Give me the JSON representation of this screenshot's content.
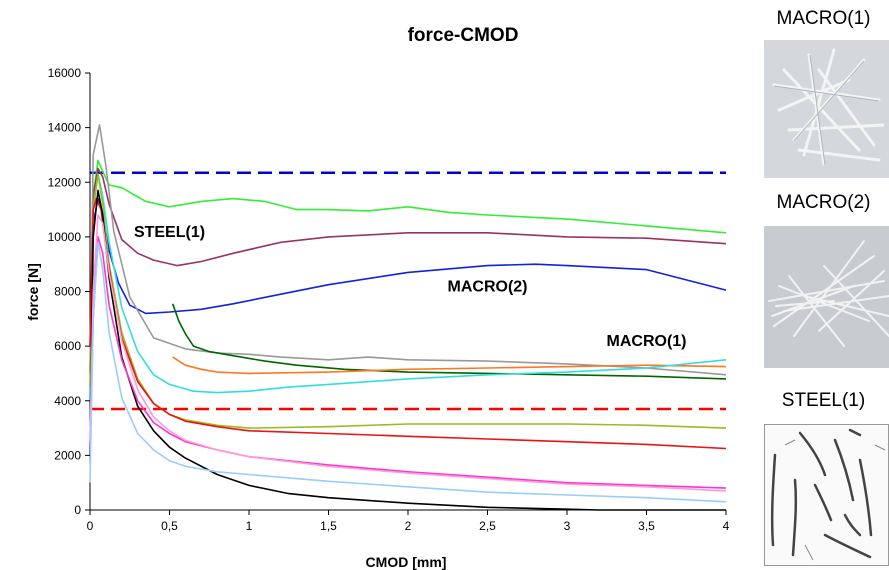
{
  "chart_data": {
    "type": "line",
    "title": "force-CMOD",
    "xlabel": "CMOD [mm]",
    "ylabel": "force [N]",
    "xlim": [
      0,
      4
    ],
    "ylim": [
      0,
      16000
    ],
    "xticks": [
      0,
      0.5,
      1,
      1.5,
      2,
      2.5,
      3,
      3.5,
      4
    ],
    "xtick_labels": [
      "0",
      "0,5",
      "1",
      "1,5",
      "2",
      "2,5",
      "3",
      "3,5",
      "4"
    ],
    "yticks": [
      0,
      2000,
      4000,
      6000,
      8000,
      10000,
      12000,
      14000,
      16000
    ],
    "ytick_labels": [
      "0",
      "2000",
      "4000",
      "6000",
      "8000",
      "10000",
      "12000",
      "14000",
      "16000"
    ],
    "grid": false,
    "legend": "none",
    "annotations": [
      {
        "text": "STEEL(1)",
        "x": 0.5,
        "y": 10000
      },
      {
        "text": "MACRO(2)",
        "x": 2.5,
        "y": 8000
      },
      {
        "text": "MACRO(1)",
        "x": 3.5,
        "y": 6000
      }
    ],
    "reference_lines": [
      {
        "y": 12350,
        "color": "#0000cc",
        "style": "dashed"
      },
      {
        "y": 3700,
        "color": "#ff0000",
        "style": "dashed"
      }
    ],
    "series": [
      {
        "color": "#33ee33",
        "x": [
          0,
          0.02,
          0.05,
          0.08,
          0.12,
          0.2,
          0.35,
          0.5,
          0.7,
          0.9,
          1.1,
          1.3,
          1.5,
          1.75,
          2,
          2.25,
          2.5,
          3,
          3.5,
          4
        ],
        "y": [
          4500,
          11500,
          12800,
          12400,
          11900,
          11800,
          11300,
          11100,
          11300,
          11400,
          11300,
          11000,
          11000,
          10950,
          11100,
          10900,
          10800,
          10650,
          10400,
          10150
        ]
      },
      {
        "color": "#993366",
        "x": [
          0,
          0.02,
          0.05,
          0.08,
          0.12,
          0.2,
          0.3,
          0.4,
          0.55,
          0.7,
          0.9,
          1.2,
          1.5,
          2,
          2.5,
          3,
          3.5,
          4
        ],
        "y": [
          5000,
          11500,
          12500,
          12200,
          11200,
          9900,
          9400,
          9150,
          8950,
          9100,
          9400,
          9800,
          10000,
          10150,
          10150,
          10000,
          9950,
          9750
        ]
      },
      {
        "color": "#1122dd",
        "x": [
          0,
          0.02,
          0.05,
          0.08,
          0.12,
          0.18,
          0.25,
          0.35,
          0.5,
          0.7,
          0.9,
          1.2,
          1.5,
          2,
          2.5,
          2.8,
          3,
          3.5,
          4
        ],
        "y": [
          4000,
          10500,
          11400,
          10800,
          9500,
          8300,
          7500,
          7200,
          7250,
          7350,
          7550,
          7900,
          8250,
          8700,
          8950,
          9000,
          8950,
          8800,
          8050
        ]
      },
      {
        "color": "#999999",
        "x": [
          0,
          0.02,
          0.06,
          0.1,
          0.15,
          0.25,
          0.4,
          0.6,
          0.8,
          1.0,
          1.2,
          1.5,
          1.75,
          2,
          2.5,
          3,
          3.5,
          4
        ],
        "y": [
          5000,
          13000,
          14100,
          12600,
          10200,
          7800,
          6300,
          5900,
          5750,
          5700,
          5600,
          5500,
          5600,
          5500,
          5450,
          5350,
          5200,
          4950
        ]
      },
      {
        "color": "#006600",
        "x": [
          0.52,
          0.56,
          0.6,
          0.65,
          0.75,
          0.9,
          1.1,
          1.3,
          1.6,
          2,
          2.5,
          3,
          3.5,
          4
        ],
        "y": [
          7550,
          6900,
          6450,
          6000,
          5800,
          5650,
          5450,
          5300,
          5150,
          5050,
          5000,
          4950,
          4900,
          4800
        ]
      },
      {
        "color": "#ff7722",
        "x": [
          0.52,
          0.6,
          0.7,
          0.8,
          1.0,
          1.5,
          2,
          2.5,
          3,
          3.5,
          4
        ],
        "y": [
          5600,
          5300,
          5150,
          5050,
          5000,
          5050,
          5150,
          5200,
          5250,
          5300,
          5250
        ]
      },
      {
        "color": "#33dddd",
        "x": [
          0,
          0.02,
          0.05,
          0.08,
          0.12,
          0.2,
          0.3,
          0.4,
          0.5,
          0.65,
          0.8,
          1.0,
          1.25,
          1.5,
          2,
          2.5,
          3,
          3.5,
          4
        ],
        "y": [
          4000,
          11000,
          12300,
          11500,
          9800,
          7400,
          5800,
          4950,
          4600,
          4350,
          4300,
          4350,
          4500,
          4600,
          4800,
          4950,
          5050,
          5200,
          5500
        ]
      },
      {
        "color": "#99bb22",
        "x": [
          0,
          0.02,
          0.05,
          0.08,
          0.12,
          0.2,
          0.3,
          0.4,
          0.5,
          0.6,
          0.8,
          1.0,
          1.5,
          2,
          2.5,
          3,
          3.5,
          4
        ],
        "y": [
          4500,
          11000,
          12300,
          11200,
          9000,
          6500,
          4800,
          3900,
          3500,
          3300,
          3100,
          3000,
          3050,
          3150,
          3150,
          3150,
          3100,
          3000
        ]
      },
      {
        "color": "#ee1111",
        "x": [
          0,
          0.02,
          0.04,
          0.07,
          0.1,
          0.15,
          0.2,
          0.3,
          0.4,
          0.5,
          0.6,
          0.8,
          1.0,
          1.5,
          2,
          2.5,
          3,
          3.5,
          4
        ],
        "y": [
          6000,
          11000,
          11400,
          11000,
          9600,
          7800,
          6300,
          4700,
          3900,
          3500,
          3250,
          3050,
          2900,
          2800,
          2700,
          2600,
          2500,
          2400,
          2250
        ]
      },
      {
        "color": "#000000",
        "x": [
          0,
          0.02,
          0.05,
          0.08,
          0.12,
          0.2,
          0.3,
          0.4,
          0.5,
          0.6,
          0.8,
          1.0,
          1.25,
          1.5,
          2,
          2.5,
          3,
          3.2,
          3.5,
          4
        ],
        "y": [
          2000,
          10000,
          11700,
          10800,
          8500,
          5600,
          3800,
          2900,
          2300,
          1900,
          1300,
          900,
          600,
          450,
          250,
          100,
          30,
          0,
          0,
          0
        ]
      },
      {
        "color": "#ff33cc",
        "x": [
          0,
          0.02,
          0.05,
          0.08,
          0.12,
          0.2,
          0.3,
          0.4,
          0.5,
          0.6,
          0.8,
          1.0,
          1.5,
          2,
          2.5,
          3,
          3.5,
          4
        ],
        "y": [
          2000,
          7000,
          10000,
          9400,
          7500,
          5500,
          4000,
          3200,
          2800,
          2500,
          2200,
          1950,
          1650,
          1400,
          1200,
          1000,
          900,
          800
        ]
      },
      {
        "color": "#ff99dd",
        "x": [
          0,
          0.02,
          0.05,
          0.08,
          0.12,
          0.2,
          0.3,
          0.4,
          0.5,
          0.6,
          0.8,
          1.0,
          1.5,
          2,
          2.5,
          3,
          3.5,
          4
        ],
        "y": [
          2500,
          8000,
          10800,
          10500,
          8700,
          6200,
          4400,
          3400,
          2900,
          2550,
          2200,
          1950,
          1600,
          1350,
          1150,
          950,
          850,
          700
        ]
      },
      {
        "color": "#99ccff",
        "x": [
          0,
          0.02,
          0.05,
          0.08,
          0.12,
          0.2,
          0.3,
          0.4,
          0.5,
          0.6,
          0.8,
          1.0,
          1.5,
          2,
          2.5,
          3,
          3.5,
          4
        ],
        "y": [
          1000,
          7000,
          9800,
          8800,
          6500,
          4100,
          2800,
          2200,
          1800,
          1600,
          1400,
          1300,
          1050,
          850,
          650,
          550,
          450,
          300
        ]
      }
    ]
  },
  "photos": [
    {
      "title": "MACRO(1)"
    },
    {
      "title": "MACRO(2)"
    },
    {
      "title": "STEEL(1)"
    }
  ]
}
